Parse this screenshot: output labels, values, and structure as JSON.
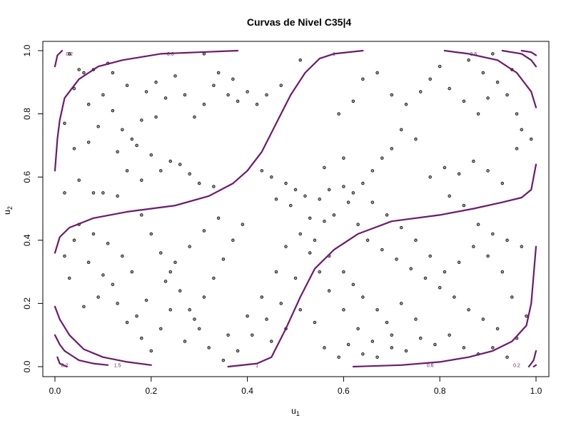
{
  "chart_data": {
    "type": "scatter",
    "title": "Curvas de Nivel C35|4",
    "xlabel": {
      "main": "u",
      "sub": "1"
    },
    "ylabel": {
      "main": "u",
      "sub": "2"
    },
    "xlim": [
      0,
      1
    ],
    "ylim": [
      0,
      1
    ],
    "xticks": [
      "0.0",
      "0.2",
      "0.4",
      "0.6",
      "0.8",
      "1.0"
    ],
    "yticks": [
      "0.0",
      "0.2",
      "0.4",
      "0.6",
      "0.8",
      "1.0"
    ],
    "grid": false,
    "contour_color": "#6b1a6b",
    "point_color": "#333333",
    "contour_labels": [
      {
        "text": "0.2",
        "x": 0.03,
        "y": 0.99
      },
      {
        "text": "0.6",
        "x": 0.24,
        "y": 0.99
      },
      {
        "text": "1",
        "x": 0.58,
        "y": 0.99
      },
      {
        "text": "0.6",
        "x": 0.87,
        "y": 0.99
      },
      {
        "text": "0.2",
        "x": 0.02,
        "y": 0.005
      },
      {
        "text": "1.5",
        "x": 0.13,
        "y": 0.005
      },
      {
        "text": "1",
        "x": 0.42,
        "y": 0.005
      },
      {
        "text": "0.6",
        "x": 0.78,
        "y": 0.005
      },
      {
        "text": "0.2",
        "x": 0.96,
        "y": 0.005
      }
    ],
    "contours": [
      {
        "level": "1",
        "points": [
          [
            0.0,
            0.36
          ],
          [
            0.01,
            0.41
          ],
          [
            0.03,
            0.44
          ],
          [
            0.08,
            0.47
          ],
          [
            0.15,
            0.49
          ],
          [
            0.25,
            0.51
          ],
          [
            0.32,
            0.54
          ],
          [
            0.37,
            0.58
          ],
          [
            0.4,
            0.62
          ],
          [
            0.43,
            0.68
          ],
          [
            0.46,
            0.77
          ],
          [
            0.49,
            0.86
          ],
          [
            0.52,
            0.93
          ],
          [
            0.55,
            0.975
          ],
          [
            0.58,
            0.99
          ],
          [
            0.64,
            1.0
          ]
        ]
      },
      {
        "level": "1",
        "points": [
          [
            0.36,
            0.0
          ],
          [
            0.42,
            0.01
          ],
          [
            0.45,
            0.03
          ],
          [
            0.48,
            0.12
          ],
          [
            0.51,
            0.22
          ],
          [
            0.54,
            0.31
          ],
          [
            0.58,
            0.37
          ],
          [
            0.63,
            0.42
          ],
          [
            0.7,
            0.46
          ],
          [
            0.8,
            0.48
          ],
          [
            0.87,
            0.5
          ],
          [
            0.93,
            0.52
          ],
          [
            0.97,
            0.535
          ],
          [
            0.99,
            0.56
          ],
          [
            1.0,
            0.64
          ]
        ]
      },
      {
        "level": "0.6",
        "points": [
          [
            0.0,
            0.62
          ],
          [
            0.005,
            0.72
          ],
          [
            0.01,
            0.78
          ],
          [
            0.02,
            0.85
          ],
          [
            0.05,
            0.91
          ],
          [
            0.09,
            0.95
          ],
          [
            0.14,
            0.97
          ],
          [
            0.22,
            0.99
          ],
          [
            0.3,
            0.995
          ],
          [
            0.38,
            1.0
          ]
        ]
      },
      {
        "level": "0.6",
        "points": [
          [
            0.81,
            1.0
          ],
          [
            0.86,
            0.99
          ],
          [
            0.92,
            0.97
          ],
          [
            0.96,
            0.93
          ],
          [
            0.99,
            0.87
          ],
          [
            1.0,
            0.82
          ]
        ]
      },
      {
        "level": "0.6",
        "points": [
          [
            0.0,
            0.19
          ],
          [
            0.01,
            0.15
          ],
          [
            0.03,
            0.1
          ],
          [
            0.06,
            0.055
          ],
          [
            0.1,
            0.03
          ],
          [
            0.15,
            0.015
          ],
          [
            0.2,
            0.005
          ]
        ]
      },
      {
        "level": "0.6",
        "points": [
          [
            0.62,
            0.0
          ],
          [
            0.72,
            0.005
          ],
          [
            0.8,
            0.015
          ],
          [
            0.86,
            0.03
          ],
          [
            0.91,
            0.05
          ],
          [
            0.95,
            0.08
          ],
          [
            0.98,
            0.13
          ],
          [
            0.99,
            0.2
          ],
          [
            1.0,
            0.38
          ]
        ]
      },
      {
        "level": "1.5",
        "points": [
          [
            0.0,
            0.1
          ],
          [
            0.01,
            0.07
          ],
          [
            0.02,
            0.05
          ],
          [
            0.035,
            0.035
          ],
          [
            0.05,
            0.02
          ],
          [
            0.08,
            0.01
          ],
          [
            0.11,
            0.005
          ]
        ]
      },
      {
        "level": "0.2",
        "points": [
          [
            0.0,
            0.95
          ],
          [
            0.005,
            0.985
          ],
          [
            0.015,
            1.0
          ]
        ]
      },
      {
        "level": "0.2",
        "points": [
          [
            0.005,
            0.03
          ],
          [
            0.01,
            0.01
          ],
          [
            0.025,
            0.0
          ]
        ]
      },
      {
        "level": "0.2",
        "points": [
          [
            0.93,
            1.0
          ],
          [
            0.97,
            0.99
          ],
          [
            0.99,
            0.97
          ],
          [
            1.0,
            0.95
          ]
        ]
      },
      {
        "level": "0.2",
        "points": [
          [
            0.97,
            1.0
          ],
          [
            0.99,
            0.995
          ],
          [
            1.0,
            0.985
          ]
        ]
      },
      {
        "level": "0.2",
        "points": [
          [
            0.985,
            0.0
          ],
          [
            0.995,
            0.02
          ],
          [
            1.0,
            0.05
          ]
        ]
      },
      {
        "level": "0.2",
        "points": [
          [
            0.995,
            0.0
          ],
          [
            1.0,
            0.005
          ]
        ]
      }
    ],
    "points": [
      [
        0.06,
        0.93
      ],
      [
        0.08,
        0.94
      ],
      [
        0.11,
        0.96
      ],
      [
        0.03,
        0.99
      ],
      [
        0.05,
        0.94
      ],
      [
        0.02,
        0.77
      ],
      [
        0.04,
        0.69
      ],
      [
        0.07,
        0.71
      ],
      [
        0.09,
        0.76
      ],
      [
        0.12,
        0.81
      ],
      [
        0.13,
        0.68
      ],
      [
        0.15,
        0.62
      ],
      [
        0.05,
        0.59
      ],
      [
        0.08,
        0.55
      ],
      [
        0.02,
        0.55
      ],
      [
        0.1,
        0.55
      ],
      [
        0.13,
        0.54
      ],
      [
        0.16,
        0.72
      ],
      [
        0.18,
        0.78
      ],
      [
        0.21,
        0.79
      ],
      [
        0.23,
        0.85
      ],
      [
        0.25,
        0.92
      ],
      [
        0.27,
        0.86
      ],
      [
        0.29,
        0.79
      ],
      [
        0.31,
        0.83
      ],
      [
        0.33,
        0.89
      ],
      [
        0.36,
        0.86
      ],
      [
        0.38,
        0.84
      ],
      [
        0.4,
        0.87
      ],
      [
        0.42,
        0.83
      ],
      [
        0.44,
        0.86
      ],
      [
        0.47,
        0.89
      ],
      [
        0.51,
        0.97
      ],
      [
        0.26,
        0.64
      ],
      [
        0.28,
        0.61
      ],
      [
        0.3,
        0.58
      ],
      [
        0.33,
        0.57
      ],
      [
        0.22,
        0.62
      ],
      [
        0.24,
        0.65
      ],
      [
        0.18,
        0.59
      ],
      [
        0.43,
        0.62
      ],
      [
        0.45,
        0.6
      ],
      [
        0.48,
        0.58
      ],
      [
        0.5,
        0.56
      ],
      [
        0.52,
        0.54
      ],
      [
        0.55,
        0.53
      ],
      [
        0.57,
        0.56
      ],
      [
        0.6,
        0.57
      ],
      [
        0.62,
        0.55
      ],
      [
        0.46,
        0.53
      ],
      [
        0.49,
        0.51
      ],
      [
        0.53,
        0.47
      ],
      [
        0.56,
        0.46
      ],
      [
        0.58,
        0.48
      ],
      [
        0.61,
        0.52
      ],
      [
        0.64,
        0.58
      ],
      [
        0.66,
        0.62
      ],
      [
        0.68,
        0.66
      ],
      [
        0.7,
        0.69
      ],
      [
        0.72,
        0.75
      ],
      [
        0.75,
        0.72
      ],
      [
        0.6,
        0.66
      ],
      [
        0.56,
        0.63
      ],
      [
        0.59,
        0.8
      ],
      [
        0.62,
        0.84
      ],
      [
        0.64,
        0.91
      ],
      [
        0.67,
        0.93
      ],
      [
        0.7,
        0.86
      ],
      [
        0.73,
        0.83
      ],
      [
        0.76,
        0.87
      ],
      [
        0.78,
        0.91
      ],
      [
        0.8,
        0.95
      ],
      [
        0.82,
        0.88
      ],
      [
        0.85,
        0.84
      ],
      [
        0.88,
        0.8
      ],
      [
        0.9,
        0.85
      ],
      [
        0.92,
        0.9
      ],
      [
        0.94,
        0.86
      ],
      [
        0.96,
        0.8
      ],
      [
        0.78,
        0.6
      ],
      [
        0.81,
        0.63
      ],
      [
        0.84,
        0.61
      ],
      [
        0.87,
        0.65
      ],
      [
        0.9,
        0.62
      ],
      [
        0.93,
        0.58
      ],
      [
        0.96,
        0.69
      ],
      [
        0.82,
        0.54
      ],
      [
        0.85,
        0.51
      ],
      [
        0.88,
        0.45
      ],
      [
        0.91,
        0.42
      ],
      [
        0.94,
        0.4
      ],
      [
        0.97,
        0.38
      ],
      [
        0.65,
        0.4
      ],
      [
        0.68,
        0.37
      ],
      [
        0.71,
        0.34
      ],
      [
        0.74,
        0.31
      ],
      [
        0.77,
        0.28
      ],
      [
        0.8,
        0.25
      ],
      [
        0.83,
        0.22
      ],
      [
        0.86,
        0.18
      ],
      [
        0.89,
        0.15
      ],
      [
        0.92,
        0.12
      ],
      [
        0.95,
        0.22
      ],
      [
        0.98,
        0.16
      ],
      [
        0.72,
        0.2
      ],
      [
        0.75,
        0.15
      ],
      [
        0.7,
        0.1
      ],
      [
        0.66,
        0.08
      ],
      [
        0.63,
        0.12
      ],
      [
        0.6,
        0.18
      ],
      [
        0.57,
        0.24
      ],
      [
        0.55,
        0.3
      ],
      [
        0.53,
        0.36
      ],
      [
        0.5,
        0.28
      ],
      [
        0.47,
        0.2
      ],
      [
        0.44,
        0.15
      ],
      [
        0.41,
        0.1
      ],
      [
        0.38,
        0.05
      ],
      [
        0.35,
        0.02
      ],
      [
        0.32,
        0.06
      ],
      [
        0.3,
        0.12
      ],
      [
        0.28,
        0.18
      ],
      [
        0.26,
        0.24
      ],
      [
        0.24,
        0.3
      ],
      [
        0.22,
        0.36
      ],
      [
        0.2,
        0.42
      ],
      [
        0.18,
        0.48
      ],
      [
        0.05,
        0.45
      ],
      [
        0.08,
        0.42
      ],
      [
        0.11,
        0.39
      ],
      [
        0.14,
        0.35
      ],
      [
        0.16,
        0.3
      ],
      [
        0.12,
        0.26
      ],
      [
        0.09,
        0.22
      ],
      [
        0.06,
        0.19
      ],
      [
        0.03,
        0.28
      ],
      [
        0.02,
        0.35
      ],
      [
        0.04,
        0.4
      ],
      [
        0.07,
        0.33
      ],
      [
        0.1,
        0.29
      ],
      [
        0.13,
        0.2
      ],
      [
        0.15,
        0.14
      ],
      [
        0.18,
        0.09
      ],
      [
        0.2,
        0.05
      ],
      [
        0.22,
        0.12
      ],
      [
        0.24,
        0.18
      ],
      [
        0.27,
        0.08
      ],
      [
        0.29,
        0.15
      ],
      [
        0.31,
        0.22
      ],
      [
        0.33,
        0.28
      ],
      [
        0.35,
        0.34
      ],
      [
        0.37,
        0.4
      ],
      [
        0.39,
        0.45
      ],
      [
        0.34,
        0.47
      ],
      [
        0.31,
        0.43
      ],
      [
        0.28,
        0.38
      ],
      [
        0.25,
        0.33
      ],
      [
        0.23,
        0.27
      ],
      [
        0.19,
        0.21
      ],
      [
        0.17,
        0.16
      ],
      [
        0.36,
        0.1
      ],
      [
        0.4,
        0.16
      ],
      [
        0.43,
        0.22
      ],
      [
        0.46,
        0.3
      ],
      [
        0.48,
        0.38
      ],
      [
        0.51,
        0.42
      ],
      [
        0.54,
        0.4
      ],
      [
        0.57,
        0.35
      ],
      [
        0.6,
        0.3
      ],
      [
        0.62,
        0.26
      ],
      [
        0.64,
        0.22
      ],
      [
        0.67,
        0.18
      ],
      [
        0.69,
        0.14
      ],
      [
        0.45,
        0.08
      ],
      [
        0.48,
        0.12
      ],
      [
        0.51,
        0.18
      ],
      [
        0.54,
        0.14
      ],
      [
        0.56,
        0.06
      ],
      [
        0.59,
        0.03
      ],
      [
        0.61,
        0.07
      ],
      [
        0.64,
        0.04
      ],
      [
        0.67,
        0.03
      ],
      [
        0.7,
        0.06
      ],
      [
        0.73,
        0.05
      ],
      [
        0.76,
        0.09
      ],
      [
        0.79,
        0.07
      ],
      [
        0.82,
        0.1
      ],
      [
        0.85,
        0.06
      ],
      [
        0.88,
        0.04
      ],
      [
        0.91,
        0.06
      ],
      [
        0.94,
        0.03
      ],
      [
        0.96,
        0.09
      ],
      [
        0.93,
        0.3
      ],
      [
        0.9,
        0.35
      ],
      [
        0.87,
        0.38
      ],
      [
        0.84,
        0.33
      ],
      [
        0.81,
        0.3
      ],
      [
        0.78,
        0.35
      ],
      [
        0.75,
        0.4
      ],
      [
        0.72,
        0.44
      ],
      [
        0.69,
        0.48
      ],
      [
        0.66,
        0.52
      ],
      [
        0.63,
        0.45
      ],
      [
        0.12,
        0.93
      ],
      [
        0.15,
        0.89
      ],
      [
        0.19,
        0.87
      ],
      [
        0.21,
        0.9
      ],
      [
        0.07,
        0.83
      ],
      [
        0.1,
        0.86
      ],
      [
        0.04,
        0.88
      ],
      [
        0.34,
        0.93
      ],
      [
        0.37,
        0.91
      ],
      [
        0.31,
        0.99
      ],
      [
        0.14,
        0.75
      ],
      [
        0.17,
        0.7
      ],
      [
        0.2,
        0.67
      ],
      [
        0.86,
        0.97
      ],
      [
        0.89,
        0.93
      ],
      [
        0.91,
        0.99
      ],
      [
        0.95,
        0.94
      ],
      [
        0.97,
        0.75
      ],
      [
        0.99,
        0.72
      ]
    ]
  }
}
